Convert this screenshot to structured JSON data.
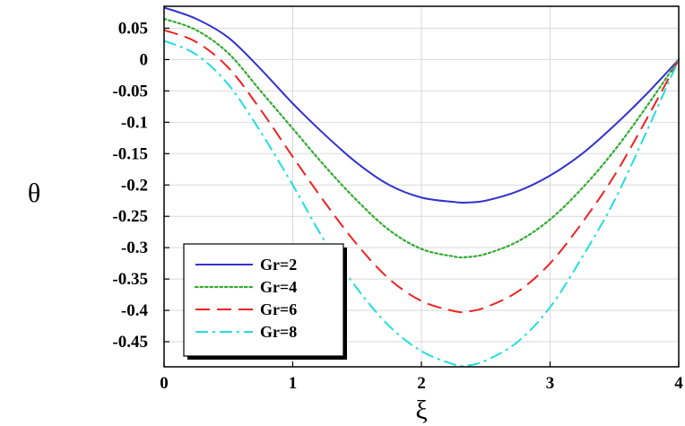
{
  "chart_data": {
    "type": "line",
    "xlabel": "ξ",
    "ylabel": "θ",
    "xlim": [
      0,
      4
    ],
    "ylim": [
      -0.49,
      0.085
    ],
    "xticks": [
      "0",
      "1",
      "2",
      "3",
      "4"
    ],
    "yticks": [
      "0.05",
      "0",
      "-0.05",
      "-0.1",
      "-0.15",
      "-0.2",
      "-0.25",
      "-0.3",
      "-0.35",
      "-0.4",
      "-0.45"
    ],
    "grid": true,
    "legend_position": "bottom-left",
    "series": [
      {
        "name": "Gr=2",
        "color": "#3333cc",
        "dash": "solid",
        "x": [
          0,
          0.25,
          0.5,
          0.75,
          1.0,
          1.25,
          1.5,
          1.75,
          2.0,
          2.25,
          2.35,
          2.5,
          2.75,
          3.0,
          3.25,
          3.5,
          3.75,
          4.0
        ],
        "y": [
          0.083,
          0.065,
          0.035,
          -0.015,
          -0.07,
          -0.12,
          -0.165,
          -0.2,
          -0.22,
          -0.227,
          -0.228,
          -0.225,
          -0.21,
          -0.185,
          -0.15,
          -0.105,
          -0.055,
          0.0
        ]
      },
      {
        "name": "Gr=4",
        "color": "#33aa33",
        "dash": "dotted",
        "x": [
          0,
          0.25,
          0.5,
          0.75,
          1.0,
          1.25,
          1.5,
          1.75,
          2.0,
          2.25,
          2.35,
          2.5,
          2.75,
          3.0,
          3.25,
          3.5,
          3.75,
          4.0
        ],
        "y": [
          0.065,
          0.047,
          0.01,
          -0.05,
          -0.11,
          -0.17,
          -0.225,
          -0.272,
          -0.302,
          -0.314,
          -0.315,
          -0.31,
          -0.29,
          -0.255,
          -0.205,
          -0.145,
          -0.075,
          0.0
        ]
      },
      {
        "name": "Gr=6",
        "color": "#ee2222",
        "dash": "dashed",
        "x": [
          0,
          0.25,
          0.5,
          0.75,
          1.0,
          1.25,
          1.5,
          1.75,
          2.0,
          2.25,
          2.35,
          2.5,
          2.75,
          3.0,
          3.25,
          3.5,
          3.75,
          4.0
        ],
        "y": [
          0.047,
          0.028,
          -0.013,
          -0.08,
          -0.155,
          -0.228,
          -0.295,
          -0.35,
          -0.385,
          -0.401,
          -0.402,
          -0.395,
          -0.37,
          -0.325,
          -0.26,
          -0.185,
          -0.095,
          0.0
        ]
      },
      {
        "name": "Gr=8",
        "color": "#22dddd",
        "dash": "dashdot",
        "x": [
          0,
          0.25,
          0.5,
          0.75,
          1.0,
          1.25,
          1.5,
          1.75,
          2.0,
          2.25,
          2.35,
          2.5,
          2.75,
          3.0,
          3.25,
          3.5,
          3.75,
          4.0
        ],
        "y": [
          0.03,
          0.008,
          -0.04,
          -0.115,
          -0.2,
          -0.29,
          -0.365,
          -0.425,
          -0.465,
          -0.486,
          -0.488,
          -0.48,
          -0.45,
          -0.395,
          -0.315,
          -0.225,
          -0.115,
          0.0
        ]
      }
    ]
  }
}
